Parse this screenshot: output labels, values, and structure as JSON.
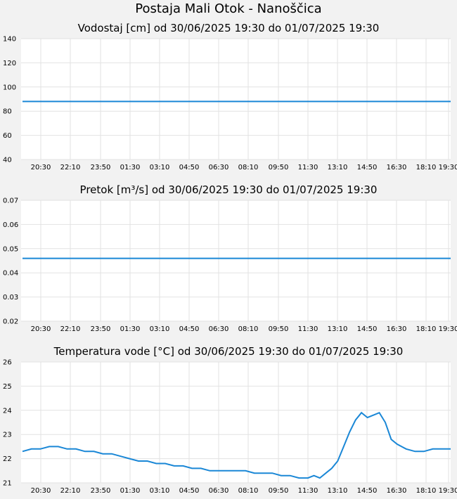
{
  "title": "Postaja Mali Otok - Nanoščica",
  "colors": {
    "line": "#1a87d6",
    "grid": "#e2e2e2",
    "plot_bg": "#ffffff",
    "page_bg": "#f2f2f2"
  },
  "chart_data": [
    {
      "type": "line",
      "title": "Vodostaj [cm] od 30/06/2025 19:30 do 01/07/2025 19:30",
      "ylim": [
        40,
        140
      ],
      "yticks": [
        "40",
        "60",
        "80",
        "100",
        "120",
        "140"
      ],
      "xticks": [
        "20:30",
        "22:10",
        "23:50",
        "01:30",
        "03:10",
        "04:50",
        "06:30",
        "08:10",
        "09:50",
        "11:30",
        "13:10",
        "14:50",
        "16:30",
        "18:10",
        "19:30"
      ],
      "x": [
        "19:30",
        "19:30"
      ],
      "series": [
        {
          "values": [
            88,
            88
          ]
        }
      ]
    },
    {
      "type": "line",
      "title": "Pretok [m³/s] od 30/06/2025 19:30 do 01/07/2025 19:30",
      "ylim": [
        0.02,
        0.07
      ],
      "yticks": [
        "0.02",
        "0.03",
        "0.04",
        "0.05",
        "0.06",
        "0.07"
      ],
      "xticks": [
        "20:30",
        "22:10",
        "23:50",
        "01:30",
        "03:10",
        "04:50",
        "06:30",
        "08:10",
        "09:50",
        "11:30",
        "13:10",
        "14:50",
        "16:30",
        "18:10",
        "19:30"
      ],
      "x": [
        "19:30",
        "19:30"
      ],
      "series": [
        {
          "values": [
            0.046,
            0.046
          ]
        }
      ]
    },
    {
      "type": "line",
      "title": "Temperatura vode [°C] od 30/06/2025 19:30 do 01/07/2025 19:30",
      "ylim": [
        21,
        26
      ],
      "yticks": [
        "21",
        "22",
        "23",
        "24",
        "25",
        "26"
      ],
      "xticks": [
        "20:30",
        "22:10",
        "23:50",
        "01:30",
        "03:10",
        "04:50",
        "06:30",
        "08:10",
        "09:50",
        "11:30",
        "13:10",
        "14:50",
        "16:30",
        "18:10",
        "19:30"
      ],
      "x": [
        "19:30",
        "20:00",
        "20:30",
        "21:00",
        "21:30",
        "22:00",
        "22:30",
        "23:00",
        "23:30",
        "00:00",
        "00:30",
        "01:00",
        "01:30",
        "02:00",
        "02:30",
        "03:00",
        "03:30",
        "04:00",
        "04:30",
        "05:00",
        "05:30",
        "06:00",
        "06:30",
        "07:00",
        "07:30",
        "08:00",
        "08:30",
        "09:00",
        "09:30",
        "10:00",
        "10:30",
        "11:00",
        "11:30",
        "11:50",
        "12:10",
        "12:30",
        "12:50",
        "13:10",
        "13:30",
        "13:50",
        "14:10",
        "14:30",
        "14:50",
        "15:10",
        "15:30",
        "15:50",
        "16:10",
        "16:30",
        "17:00",
        "17:30",
        "18:00",
        "18:30",
        "19:00",
        "19:30"
      ],
      "series": [
        {
          "values": [
            22.3,
            22.4,
            22.4,
            22.5,
            22.5,
            22.4,
            22.4,
            22.3,
            22.3,
            22.2,
            22.2,
            22.1,
            22.0,
            21.9,
            21.9,
            21.8,
            21.8,
            21.7,
            21.7,
            21.6,
            21.6,
            21.5,
            21.5,
            21.5,
            21.5,
            21.5,
            21.4,
            21.4,
            21.4,
            21.3,
            21.3,
            21.2,
            21.2,
            21.3,
            21.2,
            21.4,
            21.6,
            21.9,
            22.5,
            23.1,
            23.6,
            23.9,
            23.7,
            23.8,
            23.9,
            23.5,
            22.8,
            22.6,
            22.4,
            22.3,
            22.3,
            22.4,
            22.4,
            22.4
          ]
        }
      ]
    }
  ]
}
